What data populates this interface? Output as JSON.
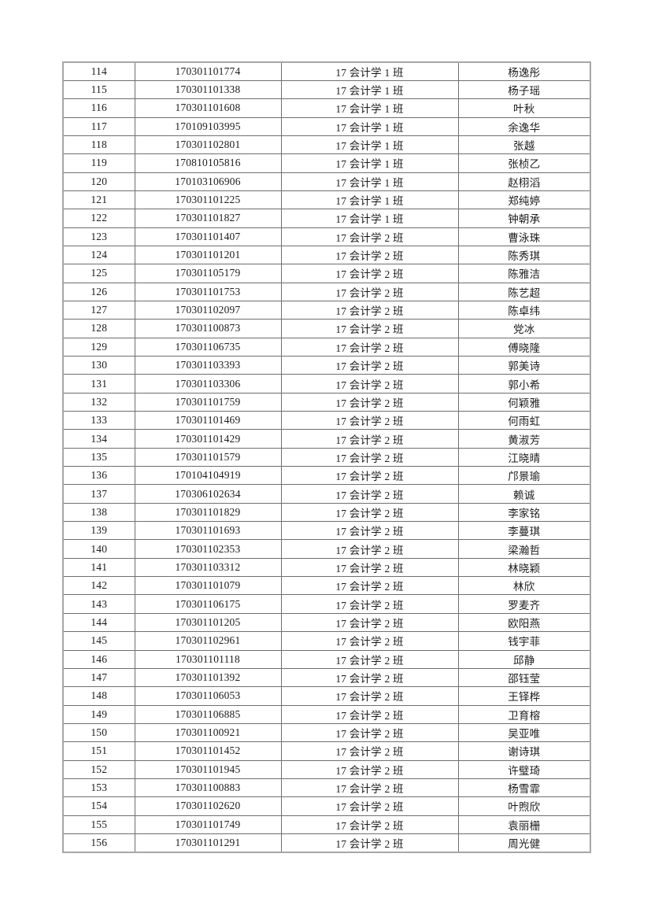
{
  "page": {
    "background": "#ffffff",
    "text_color": "#1c1c1c",
    "border_color_outer": "#a6a6a6",
    "border_color_inner": "#6f6f6f"
  },
  "table": {
    "columns": [
      "index",
      "student_id",
      "class",
      "name"
    ],
    "rows": [
      [
        "114",
        "170301101774",
        "17 会计学 1 班",
        "杨逸彤"
      ],
      [
        "115",
        "170301101338",
        "17 会计学 1 班",
        "杨子瑶"
      ],
      [
        "116",
        "170301101608",
        "17 会计学 1 班",
        "叶秋"
      ],
      [
        "117",
        "170109103995",
        "17 会计学 1 班",
        "余逸华"
      ],
      [
        "118",
        "170301102801",
        "17 会计学 1 班",
        "张越"
      ],
      [
        "119",
        "170810105816",
        "17 会计学 1 班",
        "张桢乙"
      ],
      [
        "120",
        "170103106906",
        "17 会计学 1 班",
        "赵栩滔"
      ],
      [
        "121",
        "170301101225",
        "17 会计学 1 班",
        "郑纯婷"
      ],
      [
        "122",
        "170301101827",
        "17 会计学 1 班",
        "钟朝承"
      ],
      [
        "123",
        "170301101407",
        "17 会计学 2 班",
        "曹泳珠"
      ],
      [
        "124",
        "170301101201",
        "17 会计学 2 班",
        "陈秀琪"
      ],
      [
        "125",
        "170301105179",
        "17 会计学 2 班",
        "陈雅洁"
      ],
      [
        "126",
        "170301101753",
        "17 会计学 2 班",
        "陈艺超"
      ],
      [
        "127",
        "170301102097",
        "17 会计学 2 班",
        "陈卓纬"
      ],
      [
        "128",
        "170301100873",
        "17 会计学 2 班",
        "党冰"
      ],
      [
        "129",
        "170301106735",
        "17 会计学 2 班",
        "傅晓隆"
      ],
      [
        "130",
        "170301103393",
        "17 会计学 2 班",
        "郭美诗"
      ],
      [
        "131",
        "170301103306",
        "17 会计学 2 班",
        "郭小希"
      ],
      [
        "132",
        "170301101759",
        "17 会计学 2 班",
        "何颖雅"
      ],
      [
        "133",
        "170301101469",
        "17 会计学 2 班",
        "何雨虹"
      ],
      [
        "134",
        "170301101429",
        "17 会计学 2 班",
        "黄淑芳"
      ],
      [
        "135",
        "170301101579",
        "17 会计学 2 班",
        "江晓晴"
      ],
      [
        "136",
        "170104104919",
        "17 会计学 2 班",
        "邝景瑜"
      ],
      [
        "137",
        "170306102634",
        "17 会计学 2 班",
        "赖诚"
      ],
      [
        "138",
        "170301101829",
        "17 会计学 2 班",
        "李家铭"
      ],
      [
        "139",
        "170301101693",
        "17 会计学 2 班",
        "李蔓琪"
      ],
      [
        "140",
        "170301102353",
        "17 会计学 2 班",
        "梁瀚哲"
      ],
      [
        "141",
        "170301103312",
        "17 会计学 2 班",
        "林晓颖"
      ],
      [
        "142",
        "170301101079",
        "17 会计学 2 班",
        "林欣"
      ],
      [
        "143",
        "170301106175",
        "17 会计学 2 班",
        "罗麦齐"
      ],
      [
        "144",
        "170301101205",
        "17 会计学 2 班",
        "欧阳燕"
      ],
      [
        "145",
        "170301102961",
        "17 会计学 2 班",
        "钱宇菲"
      ],
      [
        "146",
        "170301101118",
        "17 会计学 2 班",
        "邱静"
      ],
      [
        "147",
        "170301101392",
        "17 会计学 2 班",
        "邵钰莹"
      ],
      [
        "148",
        "170301106053",
        "17 会计学 2 班",
        "王铎桦"
      ],
      [
        "149",
        "170301106885",
        "17 会计学 2 班",
        "卫育榕"
      ],
      [
        "150",
        "170301100921",
        "17 会计学 2 班",
        "吴亚唯"
      ],
      [
        "151",
        "170301101452",
        "17 会计学 2 班",
        "谢诗琪"
      ],
      [
        "152",
        "170301101945",
        "17 会计学 2 班",
        "许璧琦"
      ],
      [
        "153",
        "170301100883",
        "17 会计学 2 班",
        "杨雪霏"
      ],
      [
        "154",
        "170301102620",
        "17 会计学 2 班",
        "叶煦欣"
      ],
      [
        "155",
        "170301101749",
        "17 会计学 2 班",
        "袁丽栅"
      ],
      [
        "156",
        "170301101291",
        "17 会计学 2 班",
        "周光健"
      ]
    ]
  }
}
